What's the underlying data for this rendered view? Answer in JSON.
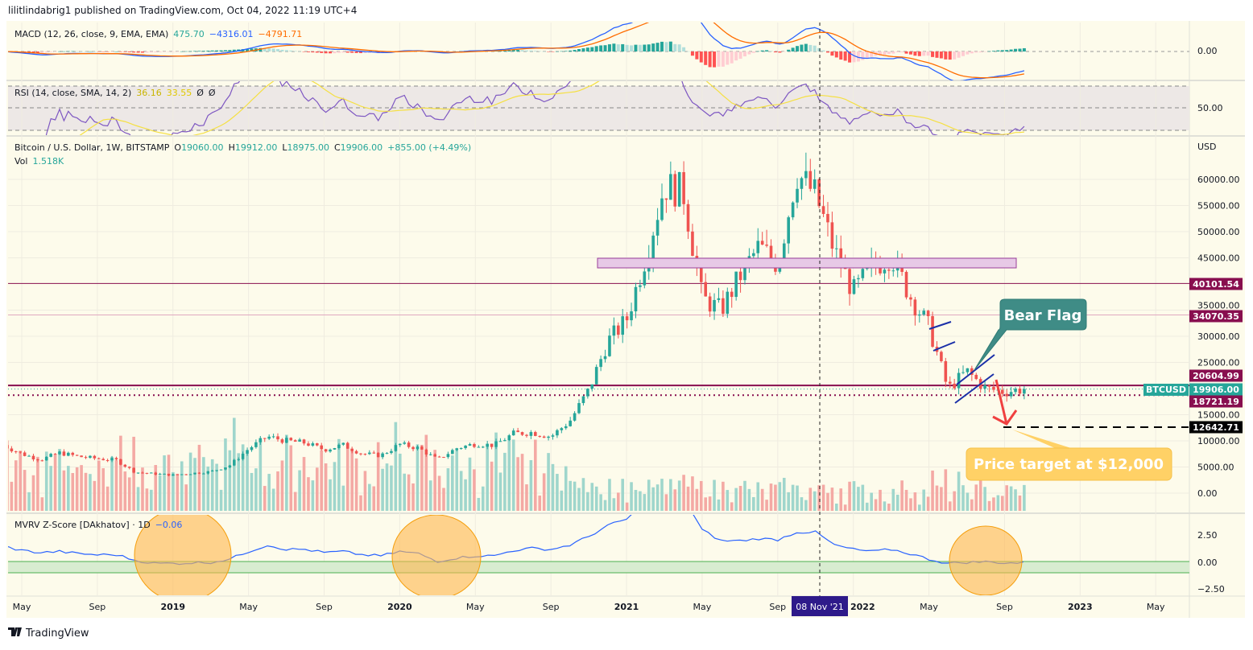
{
  "header": {
    "published": "lilitlindabrig1 published on TradingView.com, Oct 04, 2022 11:19 UTC+4"
  },
  "footer": {
    "logo_text": "TradingView"
  },
  "colors": {
    "background": "#fdfbeb",
    "up": "#26a69a",
    "down": "#ef5350",
    "macd": "#2962ff",
    "signal": "#ff6d00",
    "rsi": "#7e57c2",
    "rsi_ma": "#f5e042",
    "mvrv": "#2962ff",
    "level": "#880e4f",
    "bear_flag": "#3f8c86",
    "target": "#ffd166",
    "crosshair_label": "#2e1a8a"
  },
  "macd": {
    "title": "MACD (12, 26, close, 9, EMA, EMA)",
    "hist": "475.70",
    "macd": "−4316.01",
    "signal": "−4791.71",
    "zero_label": "0.00"
  },
  "rsi": {
    "title": "RSI (14, close, SMA, 14, 2)",
    "value": "36.16",
    "ma": "33.55",
    "extra1": "Ø",
    "extra2": "Ø",
    "mid_label": "50.00"
  },
  "main": {
    "symbol": "Bitcoin / U.S. Dollar, 1W, BITSTAMP",
    "o_label": "O",
    "o": "19060.00",
    "h_label": "H",
    "h": "19912.00",
    "l_label": "L",
    "l": "18975.00",
    "c_label": "C",
    "c": "19906.00",
    "change": "+855.00 (+4.49%)",
    "vol_label": "Vol",
    "vol": "1.518K",
    "currency": "USD",
    "ticker_tag": "BTCUSD"
  },
  "mvrv": {
    "title": "MVRV Z-Score [DAkhatov] · 1D",
    "value": "−0.06",
    "ticks": [
      "2.50",
      "0.00",
      "−2.50"
    ]
  },
  "crosshair": {
    "date": "08 Nov '21"
  },
  "annotations": {
    "bear_flag": "Bear Flag",
    "price_target": "Price target at $12,000"
  },
  "chart_data": {
    "type": "candlestick",
    "title": "Bitcoin / U.S. Dollar, 1W, BITSTAMP",
    "ylabel": "USD",
    "ylim": [
      0,
      65000
    ],
    "y_ticks": [
      "60000.00",
      "55000.00",
      "50000.00",
      "45000.00",
      "35000.00",
      "30000.00",
      "25000.00",
      "15000.00",
      "10000.00",
      "5000.00",
      "0.00"
    ],
    "x_ticks": [
      "May",
      "Sep",
      "2019",
      "May",
      "Sep",
      "2020",
      "May",
      "Sep",
      "2021",
      "May",
      "Sep",
      "2022",
      "May",
      "Sep",
      "2023",
      "May"
    ],
    "monthly_close_from_2018_04": [
      9200,
      7500,
      6400,
      7700,
      7000,
      6600,
      6300,
      4000,
      3700,
      3450,
      3800,
      4100,
      5300,
      8500,
      10800,
      10000,
      9600,
      8300,
      9200,
      7550,
      7200,
      9350,
      8600,
      6400,
      8600,
      9450,
      9150,
      11350,
      11650,
      10800,
      13800,
      19700,
      29000,
      33100,
      45200,
      58800,
      57700,
      37300,
      35000,
      41500,
      47100,
      43800,
      61300,
      57000,
      46300,
      38500,
      43200,
      45500,
      37700,
      31800,
      19900,
      23300,
      20000,
      19400,
      19906
    ],
    "mvrv_monthly_from_2018_04": [
      1.5,
      1.1,
      0.9,
      1.0,
      0.8,
      0.7,
      0.7,
      0.2,
      -0.1,
      -0.1,
      -0.05,
      0.0,
      0.3,
      1.0,
      1.6,
      1.2,
      1.2,
      0.9,
      1.0,
      0.7,
      0.6,
      1.0,
      0.8,
      0.1,
      0.4,
      0.6,
      0.6,
      1.1,
      1.3,
      1.2,
      1.6,
      2.4,
      3.4,
      4.0,
      5.5,
      6.5,
      6.0,
      3.0,
      2.0,
      2.0,
      2.2,
      2.1,
      2.8,
      2.8,
      1.6,
      1.2,
      1.0,
      1.2,
      0.8,
      0.3,
      -0.1,
      0.0,
      0.05,
      -0.05,
      -0.06
    ],
    "levels": [
      {
        "price": 40101.54,
        "label": "40101.54"
      },
      {
        "price": 34070.35,
        "label": "34070.35"
      },
      {
        "price": 20604.99,
        "label": "20604.99"
      },
      {
        "price": 19906.0,
        "label": "19906.00"
      },
      {
        "price": 18721.19,
        "label": "18721.19"
      },
      {
        "price": 12642.71,
        "label": "12642.71"
      }
    ],
    "zone": {
      "from": 43500,
      "to": 45000
    }
  }
}
